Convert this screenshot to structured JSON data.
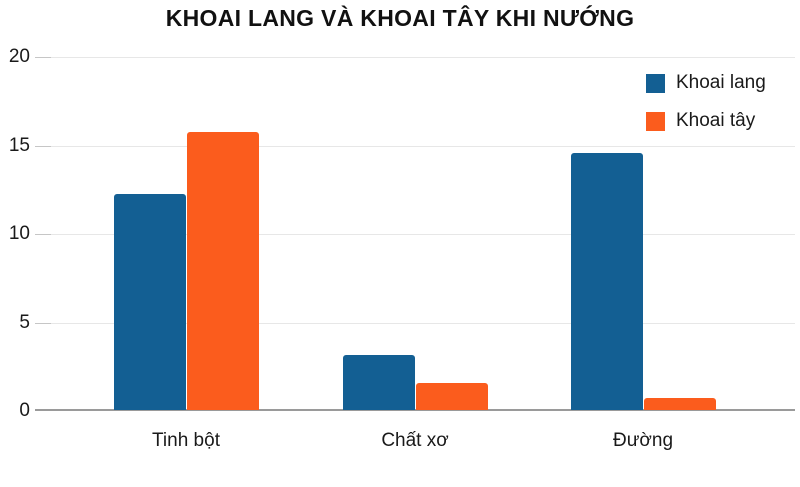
{
  "chart_data": {
    "type": "bar",
    "title": "KHOAI LANG VÀ KHOAI TÂY KHI NƯỚNG",
    "categories": [
      "Tinh bột",
      "Chất xơ",
      "Đường"
    ],
    "series": [
      {
        "name": "Khoai lang",
        "color": "#135F93",
        "values": [
          12.2,
          3.1,
          14.5
        ]
      },
      {
        "name": "Khoai tây",
        "color": "#FB5C1D",
        "values": [
          15.7,
          1.5,
          0.7
        ]
      }
    ],
    "xlabel": "",
    "ylabel": "",
    "ylim": [
      0,
      20
    ],
    "yticks": [
      0,
      5,
      10,
      15,
      20
    ],
    "grid": true,
    "legend_position": "top-right"
  },
  "colors": {
    "gridline": "#e7e7e7",
    "baseline": "#9a9a9a",
    "text": "#1a1a1a",
    "background": "#ffffff"
  }
}
